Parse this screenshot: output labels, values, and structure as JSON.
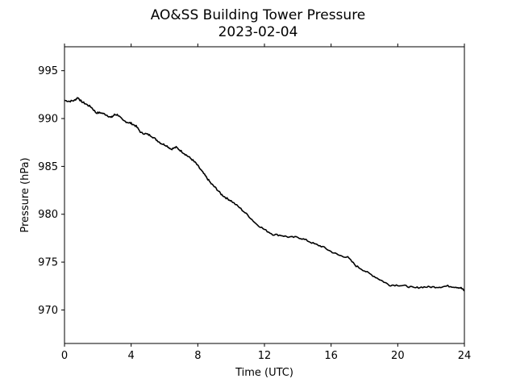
{
  "chart_data": {
    "type": "line",
    "title": "AO&SS Building Tower Pressure",
    "subtitle": "2023-02-04",
    "xlabel": "Time (UTC)",
    "ylabel": "Pressure (hPa)",
    "xlim": [
      0,
      24
    ],
    "ylim": [
      966.5,
      997.5
    ],
    "xticks": [
      0,
      4,
      8,
      12,
      16,
      20,
      24
    ],
    "yticks": [
      970,
      975,
      980,
      985,
      990,
      995
    ],
    "grid": false,
    "legend": "none",
    "line_color": "#000000",
    "series": [
      {
        "x": [
          0,
          0.3,
          0.6,
          0.8,
          1.0,
          1.3,
          1.6,
          1.9,
          2.2,
          2.5,
          2.8,
          3.0,
          3.2,
          3.5,
          3.8,
          4.0,
          4.3,
          4.6,
          4.9,
          5.2,
          5.5,
          5.8,
          6.1,
          6.4,
          6.7,
          7.0,
          7.3,
          7.6,
          7.9,
          8.2,
          8.5,
          8.8,
          9.1,
          9.4,
          9.7,
          10.0,
          10.5,
          11.0,
          11.5,
          12.0,
          12.5,
          13.0,
          13.5,
          14.0,
          14.5,
          15.0,
          15.5,
          16.0,
          16.5,
          17.0,
          17.5,
          18.0,
          18.5,
          19.0,
          19.5,
          20.0,
          20.5,
          21.0,
          21.5,
          22.0,
          22.5,
          23.0,
          23.5,
          23.8,
          24.0
        ],
        "y": [
          991.9,
          991.8,
          991.9,
          992.2,
          991.8,
          991.5,
          991.2,
          990.6,
          990.6,
          990.4,
          990.1,
          990.4,
          990.4,
          989.8,
          989.6,
          989.5,
          989.2,
          988.5,
          988.4,
          988.2,
          987.8,
          987.4,
          987.2,
          986.8,
          987.0,
          986.6,
          986.2,
          985.8,
          985.3,
          984.6,
          983.9,
          983.2,
          982.7,
          982.1,
          981.7,
          981.4,
          980.7,
          979.9,
          979.0,
          978.4,
          977.9,
          977.8,
          977.6,
          977.6,
          977.3,
          976.9,
          976.6,
          976.1,
          975.7,
          975.5,
          974.6,
          974.1,
          973.6,
          973.1,
          972.6,
          972.6,
          972.5,
          972.3,
          972.4,
          972.4,
          972.4,
          972.5,
          972.4,
          972.3,
          972.0
        ]
      }
    ]
  }
}
